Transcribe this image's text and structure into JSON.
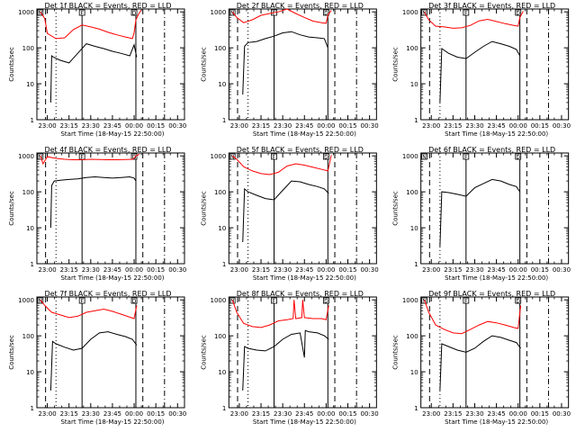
{
  "chart_data": [
    {
      "type": "line",
      "title": "Det 1f BLACK = Events, RED = LLD",
      "ylabel": "Counts/sec",
      "xlabel": "Start Time (18-May-15 22:50:00)",
      "x_tick_labels": [
        "23:00",
        "23:15",
        "23:30",
        "23:45",
        "00:00",
        "00:15",
        "00:30"
      ],
      "y_tick_labels": [
        "1",
        "10",
        "100",
        "1000"
      ],
      "yscale": "log",
      "ylim": [
        1,
        1200
      ],
      "markers": [
        {
          "label": "N"
        },
        {
          "label": "F"
        },
        {
          "label": "D"
        }
      ],
      "series": [
        {
          "color": "#ff0000",
          "x": [
            22.92,
            22.97,
            23.0,
            23.1,
            23.2,
            23.3,
            23.4,
            23.5,
            23.6,
            23.7,
            23.8,
            23.9,
            23.98,
            24.0,
            24.02,
            24.06,
            24.08
          ],
          "y": [
            1000,
            650,
            250,
            180,
            190,
            320,
            430,
            380,
            330,
            270,
            230,
            200,
            180,
            260,
            600,
            950,
            1100
          ]
        },
        {
          "color": "#000000",
          "x": [
            23.04,
            23.05,
            23.07,
            23.15,
            23.25,
            23.35,
            23.45,
            23.55,
            23.65,
            23.75,
            23.85,
            23.95,
            24.0,
            24.03
          ],
          "y": [
            3,
            60,
            55,
            45,
            38,
            70,
            130,
            110,
            95,
            80,
            70,
            60,
            120,
            55
          ]
        }
      ]
    },
    {
      "type": "line",
      "title": "Det 2f BLACK = Events, RED = LLD",
      "ylabel": "Counts/sec",
      "xlabel": "Start Time (18-May-15 22:50:00)",
      "x_tick_labels": [
        "23:00",
        "23:15",
        "23:30",
        "23:45",
        "00:00",
        "00:15",
        "00:30"
      ],
      "y_tick_labels": [
        "1",
        "10",
        "100",
        "1000"
      ],
      "yscale": "log",
      "ylim": [
        1,
        1200
      ],
      "markers": [
        {
          "label": "N"
        },
        {
          "label": "F"
        },
        {
          "label": "D"
        }
      ],
      "series": [
        {
          "color": "#ff0000",
          "x": [
            22.92,
            22.97,
            23.05,
            23.15,
            23.25,
            23.35,
            23.45,
            23.55,
            23.65,
            23.75,
            23.85,
            23.95,
            24.0,
            24.02,
            24.06
          ],
          "y": [
            1000,
            700,
            500,
            600,
            800,
            900,
            1000,
            1200,
            900,
            700,
            550,
            500,
            480,
            800,
            1100
          ]
        },
        {
          "color": "#000000",
          "x": [
            23.04,
            23.06,
            23.1,
            23.2,
            23.3,
            23.4,
            23.5,
            23.6,
            23.7,
            23.8,
            23.9,
            23.98,
            24.02
          ],
          "y": [
            5,
            110,
            140,
            150,
            180,
            210,
            260,
            280,
            230,
            200,
            190,
            180,
            100
          ]
        }
      ]
    },
    {
      "type": "line",
      "title": "Det 3f BLACK = Events, RED = LLD",
      "ylabel": "Counts/sec",
      "xlabel": "Start Time (18-May-15 22:50:00)",
      "x_tick_labels": [
        "23:00",
        "23:15",
        "23:30",
        "23:45",
        "00:00",
        "00:15",
        "00:30"
      ],
      "y_tick_labels": [
        "1",
        "10",
        "100",
        "1000"
      ],
      "yscale": "log",
      "ylim": [
        1,
        1200
      ],
      "markers": [
        {
          "label": "N"
        },
        {
          "label": "F"
        },
        {
          "label": "D"
        }
      ],
      "series": [
        {
          "color": "#ff0000",
          "x": [
            22.92,
            22.97,
            23.05,
            23.15,
            23.25,
            23.35,
            23.45,
            23.55,
            23.65,
            23.75,
            23.85,
            23.95,
            24.0,
            24.02,
            24.06
          ],
          "y": [
            1000,
            600,
            400,
            380,
            350,
            360,
            420,
            560,
            620,
            540,
            470,
            420,
            400,
            700,
            1050
          ]
        },
        {
          "color": "#000000",
          "x": [
            23.1,
            23.12,
            23.2,
            23.3,
            23.4,
            23.5,
            23.6,
            23.7,
            23.8,
            23.9,
            23.98,
            24.02
          ],
          "y": [
            3,
            95,
            70,
            55,
            50,
            75,
            110,
            150,
            130,
            110,
            90,
            60
          ]
        }
      ]
    },
    {
      "type": "line",
      "title": "Det 4f BLACK = Events, RED = LLD",
      "ylabel": "Counts/sec",
      "xlabel": "Start Time (18-May-15 22:50:00)",
      "x_tick_labels": [
        "23:00",
        "23:15",
        "23:30",
        "23:45",
        "00:00",
        "00:15",
        "00:30"
      ],
      "y_tick_labels": [
        "1",
        "10",
        "100",
        "1000"
      ],
      "yscale": "log",
      "ylim": [
        1,
        1200
      ],
      "markers": [
        {
          "label": "N"
        },
        {
          "label": "F"
        },
        {
          "label": "D"
        }
      ],
      "series": [
        {
          "color": "#ff0000",
          "x": [
            22.92,
            22.95,
            23.0,
            23.1,
            23.2,
            23.3,
            23.4,
            23.5,
            23.6,
            23.7,
            23.8,
            23.9,
            23.98,
            24.0,
            24.02,
            24.06
          ],
          "y": [
            1000,
            600,
            950,
            850,
            800,
            780,
            780,
            800,
            790,
            780,
            780,
            790,
            800,
            870,
            1000,
            1100
          ]
        },
        {
          "color": "#000000",
          "x": [
            23.04,
            23.05,
            23.08,
            23.15,
            23.25,
            23.35,
            23.45,
            23.55,
            23.65,
            23.75,
            23.85,
            23.95,
            24.0,
            24.02
          ],
          "y": [
            10,
            150,
            200,
            210,
            220,
            230,
            250,
            260,
            250,
            240,
            250,
            260,
            240,
            200
          ]
        }
      ]
    },
    {
      "type": "line",
      "title": "Det 5f BLACK = Events, RED = LLD",
      "ylabel": "Counts/sec",
      "xlabel": "Start Time (18-May-15 22:50:00)",
      "x_tick_labels": [
        "23:00",
        "23:15",
        "23:30",
        "23:45",
        "00:00",
        "00:15",
        "00:30"
      ],
      "y_tick_labels": [
        "1",
        "10",
        "100",
        "1000"
      ],
      "yscale": "log",
      "ylim": [
        1,
        1200
      ],
      "markers": [
        {
          "label": "N"
        },
        {
          "label": "F"
        },
        {
          "label": "D"
        }
      ],
      "series": [
        {
          "color": "#ff0000",
          "x": [
            22.92,
            22.97,
            23.05,
            23.15,
            23.25,
            23.35,
            23.45,
            23.55,
            23.65,
            23.75,
            23.85,
            23.95,
            24.02,
            24.06
          ],
          "y": [
            1000,
            800,
            500,
            380,
            320,
            300,
            350,
            520,
            600,
            550,
            480,
            420,
            380,
            1050
          ]
        },
        {
          "color": "#000000",
          "x": [
            23.04,
            23.06,
            23.1,
            23.2,
            23.3,
            23.4,
            23.5,
            23.6,
            23.7,
            23.8,
            23.9,
            23.98,
            24.03
          ],
          "y": [
            4,
            120,
            100,
            80,
            65,
            60,
            110,
            200,
            190,
            160,
            140,
            120,
            90
          ]
        }
      ]
    },
    {
      "type": "line",
      "title": "Det 6f BLACK = Events, RED = LLD",
      "ylabel": "Counts/sec",
      "xlabel": "Start Time (18-May-15 22:50:00)",
      "x_tick_labels": [
        "23:00",
        "23:15",
        "23:30",
        "23:45",
        "00:00",
        "00:15",
        "00:30"
      ],
      "y_tick_labels": [
        "1",
        "10",
        "100",
        "1000"
      ],
      "yscale": "log",
      "ylim": [
        1,
        1200
      ],
      "markers": [
        {
          "label": "N"
        },
        {
          "label": "F"
        },
        {
          "label": "D"
        }
      ],
      "series": [
        {
          "color": "#000000",
          "x": [
            23.1,
            23.12,
            23.2,
            23.3,
            23.4,
            23.5,
            23.6,
            23.7,
            23.8,
            23.9,
            23.98,
            24.02
          ],
          "y": [
            3,
            100,
            95,
            85,
            75,
            130,
            170,
            220,
            200,
            160,
            140,
            100
          ]
        }
      ]
    },
    {
      "type": "line",
      "title": "Det 7f BLACK = Events, RED = LLD",
      "ylabel": "Counts/sec",
      "xlabel": "Start Time (18-May-15 22:50:00)",
      "x_tick_labels": [
        "23:00",
        "23:15",
        "23:30",
        "23:45",
        "00:00",
        "00:15",
        "00:30"
      ],
      "y_tick_labels": [
        "1",
        "10",
        "100",
        "1000"
      ],
      "yscale": "log",
      "ylim": [
        1,
        1200
      ],
      "markers": [
        {
          "label": "N"
        },
        {
          "label": "F"
        },
        {
          "label": "D"
        }
      ],
      "series": [
        {
          "color": "#ff0000",
          "x": [
            22.92,
            22.97,
            23.05,
            23.15,
            23.25,
            23.35,
            23.45,
            23.55,
            23.65,
            23.75,
            23.85,
            23.95,
            24.0,
            24.03
          ],
          "y": [
            1000,
            700,
            450,
            380,
            320,
            350,
            450,
            500,
            550,
            480,
            400,
            330,
            300,
            700
          ]
        },
        {
          "color": "#000000",
          "x": [
            23.04,
            23.06,
            23.1,
            23.2,
            23.3,
            23.4,
            23.5,
            23.6,
            23.7,
            23.8,
            23.9,
            23.98,
            24.03
          ],
          "y": [
            3,
            70,
            60,
            48,
            40,
            45,
            80,
            120,
            130,
            110,
            95,
            80,
            55
          ]
        }
      ]
    },
    {
      "type": "line",
      "title": "Det 8f BLACK = Events, RED = LLD",
      "ylabel": "Counts/sec",
      "xlabel": "Start Time (18-May-15 22:50:00)",
      "x_tick_labels": [
        "23:00",
        "23:15",
        "23:30",
        "23:45",
        "00:00",
        "00:15",
        "00:30"
      ],
      "y_tick_labels": [
        "1",
        "10",
        "100",
        "1000"
      ],
      "yscale": "log",
      "ylim": [
        1,
        1200
      ],
      "markers": [
        {
          "label": "N"
        },
        {
          "label": "F"
        },
        {
          "label": "D"
        }
      ],
      "series": [
        {
          "color": "#ff0000",
          "x": [
            22.92,
            22.97,
            23.05,
            23.15,
            23.25,
            23.35,
            23.45,
            23.55,
            23.62,
            23.63,
            23.65,
            23.72,
            23.73,
            23.75,
            23.85,
            23.95,
            24.0,
            24.03
          ],
          "y": [
            1000,
            450,
            220,
            180,
            170,
            200,
            260,
            280,
            300,
            1000,
            300,
            320,
            1000,
            320,
            300,
            300,
            280,
            700
          ]
        },
        {
          "color": "#000000",
          "x": [
            23.04,
            23.06,
            23.1,
            23.2,
            23.3,
            23.4,
            23.5,
            23.6,
            23.7,
            23.75,
            23.76,
            23.8,
            23.9,
            23.98,
            24.03
          ],
          "y": [
            3,
            50,
            45,
            40,
            38,
            50,
            80,
            110,
            120,
            25,
            140,
            130,
            120,
            100,
            80
          ]
        }
      ]
    },
    {
      "type": "line",
      "title": "Det 9f BLACK = Events, RED = LLD",
      "ylabel": "Counts/sec",
      "xlabel": "Start Time (18-May-15 22:50:00)",
      "x_tick_labels": [
        "23:00",
        "23:15",
        "23:30",
        "23:45",
        "00:00",
        "00:15",
        "00:30"
      ],
      "y_tick_labels": [
        "1",
        "10",
        "100",
        "1000"
      ],
      "yscale": "log",
      "ylim": [
        1,
        1200
      ],
      "markers": [
        {
          "label": "N"
        },
        {
          "label": "F"
        },
        {
          "label": "D"
        }
      ],
      "series": [
        {
          "color": "#ff0000",
          "x": [
            22.92,
            22.97,
            23.05,
            23.15,
            23.25,
            23.35,
            23.45,
            23.55,
            23.65,
            23.75,
            23.85,
            23.95,
            24.0,
            24.03
          ],
          "y": [
            1000,
            450,
            200,
            150,
            120,
            115,
            150,
            200,
            250,
            230,
            200,
            170,
            160,
            700
          ]
        },
        {
          "color": "#000000",
          "x": [
            23.1,
            23.12,
            23.2,
            23.3,
            23.4,
            23.5,
            23.6,
            23.7,
            23.8,
            23.9,
            23.98,
            24.03
          ],
          "y": [
            3,
            60,
            50,
            40,
            35,
            45,
            70,
            100,
            90,
            75,
            65,
            45
          ]
        }
      ]
    }
  ]
}
